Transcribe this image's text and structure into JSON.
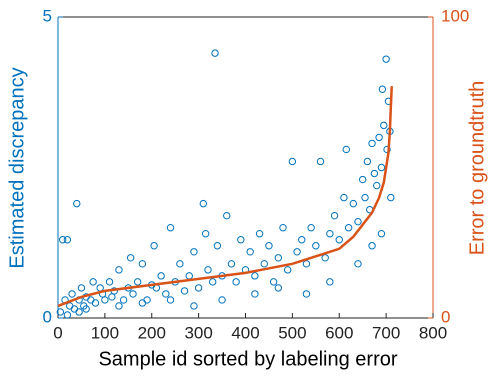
{
  "chart_data": {
    "type": "scatter",
    "xlabel": "Sample id sorted by labeling error",
    "ylabel": "Estimated discrepancy",
    "y2label": "Error to groundtruth",
    "xlim": [
      0,
      800
    ],
    "xticks": [
      0,
      100,
      200,
      300,
      400,
      500,
      600,
      700,
      800
    ],
    "ylim": [
      0,
      5
    ],
    "yticks": [
      0,
      5
    ],
    "y2lim": [
      0,
      100
    ],
    "y2ticks": [
      0,
      100
    ],
    "ycolor": "#0072bd",
    "y2color": "#d95319",
    "series": [
      {
        "kind": "scatter",
        "color": "#0072bd",
        "x": [
          5,
          10,
          15,
          20,
          25,
          30,
          35,
          40,
          45,
          50,
          55,
          60,
          70,
          75,
          80,
          90,
          95,
          100,
          110,
          115,
          120,
          130,
          140,
          150,
          155,
          160,
          170,
          180,
          190,
          200,
          205,
          210,
          220,
          230,
          240,
          250,
          260,
          270,
          280,
          290,
          300,
          310,
          315,
          320,
          330,
          335,
          340,
          350,
          360,
          370,
          380,
          390,
          400,
          410,
          420,
          430,
          440,
          450,
          460,
          470,
          480,
          490,
          500,
          510,
          520,
          530,
          540,
          550,
          560,
          570,
          580,
          590,
          600,
          610,
          615,
          620,
          630,
          640,
          650,
          655,
          660,
          665,
          670,
          675,
          680,
          685,
          690,
          692,
          695,
          700,
          702,
          705,
          708,
          710,
          20,
          45,
          60,
          130,
          180,
          240,
          290,
          350,
          420,
          470,
          530,
          580,
          640,
          670,
          690
        ],
        "values": [
          0.1,
          1.3,
          0.3,
          1.3,
          0.2,
          0.4,
          0.15,
          1.9,
          0.3,
          0.5,
          0.2,
          0.35,
          0.3,
          0.6,
          0.25,
          0.5,
          0.4,
          0.3,
          0.6,
          0.35,
          0.45,
          0.8,
          0.3,
          0.5,
          1.0,
          0.4,
          0.6,
          0.9,
          0.3,
          0.55,
          1.2,
          0.5,
          0.7,
          0.4,
          1.5,
          0.6,
          0.9,
          0.45,
          0.7,
          1.1,
          0.5,
          1.9,
          1.4,
          0.8,
          0.6,
          4.4,
          1.2,
          0.7,
          1.7,
          0.9,
          0.6,
          1.3,
          0.8,
          1.1,
          0.7,
          1.4,
          0.9,
          1.2,
          0.6,
          1.0,
          1.5,
          0.8,
          2.6,
          1.1,
          1.3,
          0.9,
          1.5,
          1.2,
          2.6,
          1.0,
          1.4,
          1.7,
          1.3,
          2.0,
          2.8,
          1.5,
          1.9,
          1.6,
          2.3,
          2.0,
          2.6,
          1.8,
          2.9,
          2.4,
          2.2,
          3.0,
          2.5,
          3.8,
          3.2,
          4.3,
          2.8,
          3.6,
          3.1,
          2.0,
          0.05,
          0.1,
          0.15,
          0.2,
          0.25,
          0.3,
          0.2,
          0.3,
          0.4,
          0.5,
          0.4,
          0.6,
          0.9,
          1.2,
          1.4
        ]
      },
      {
        "kind": "line",
        "axis": "y2",
        "color": "#d95319",
        "x": [
          0,
          50,
          100,
          200,
          300,
          400,
          500,
          560,
          600,
          630,
          650,
          670,
          685,
          695,
          700,
          705,
          708,
          710,
          712
        ],
        "values": [
          4,
          7,
          9,
          11,
          13,
          15,
          18,
          21,
          23,
          27,
          31,
          35,
          40,
          45,
          50,
          55,
          62,
          70,
          77
        ]
      }
    ]
  }
}
